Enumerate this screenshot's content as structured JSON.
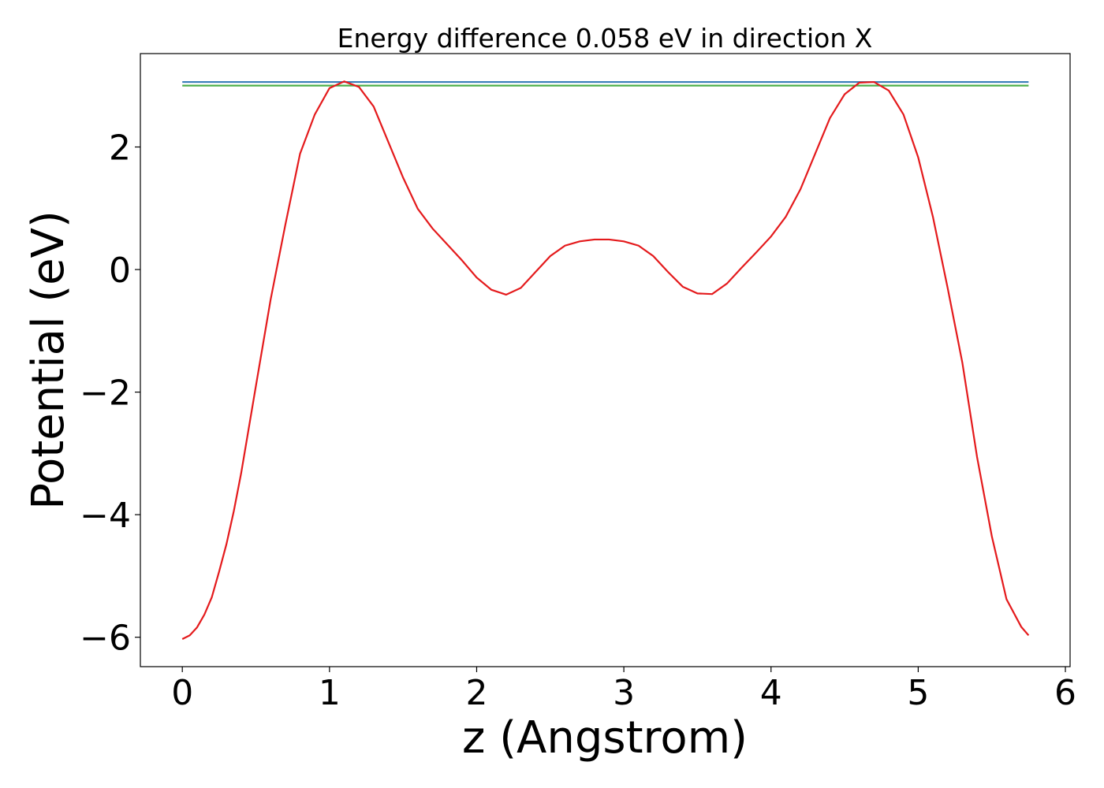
{
  "chart_data": {
    "type": "line",
    "title": "Energy difference 0.058 eV in direction X",
    "xlabel": "z (Angstrom)",
    "ylabel": "Potential (eV)",
    "xlim": [
      -0.285,
      6.032
    ],
    "ylim": [
      -6.48,
      3.524
    ],
    "xticks": [
      0,
      1,
      2,
      3,
      4,
      5,
      6
    ],
    "yticks": [
      {
        "value": -6,
        "label": "−6"
      },
      {
        "value": -4,
        "label": "−4"
      },
      {
        "value": -2,
        "label": "−2"
      },
      0,
      2
    ],
    "grid": false,
    "series": [
      {
        "color": "#e41a1c",
        "x": [
          0,
          0.05,
          0.1,
          0.15,
          0.2,
          0.25,
          0.3,
          0.35,
          0.4,
          0.5,
          0.6,
          0.7,
          0.8,
          0.9,
          1.0,
          1.1,
          1.2,
          1.3,
          1.4,
          1.5,
          1.6,
          1.7,
          1.8,
          1.9,
          2.0,
          2.1,
          2.2,
          2.3,
          2.4,
          2.5,
          2.6,
          2.7,
          2.8,
          2.9,
          3.0,
          3.1,
          3.2,
          3.3,
          3.4,
          3.5,
          3.6,
          3.7,
          3.8,
          3.9,
          4.0,
          4.1,
          4.2,
          4.3,
          4.4,
          4.5,
          4.6,
          4.7,
          4.8,
          4.9,
          5.0,
          5.1,
          5.2,
          5.3,
          5.4,
          5.5,
          5.6,
          5.7,
          5.75
        ],
        "values": [
          -6.03,
          -5.97,
          -5.84,
          -5.63,
          -5.35,
          -4.93,
          -4.48,
          -3.94,
          -3.32,
          -1.9,
          -0.49,
          0.73,
          1.89,
          2.53,
          2.96,
          3.07,
          2.98,
          2.66,
          2.08,
          1.5,
          0.99,
          0.67,
          0.41,
          0.15,
          -0.13,
          -0.33,
          -0.41,
          -0.3,
          -0.04,
          0.22,
          0.39,
          0.46,
          0.49,
          0.49,
          0.46,
          0.39,
          0.22,
          -0.04,
          -0.28,
          -0.39,
          -0.4,
          -0.23,
          0.03,
          0.28,
          0.54,
          0.86,
          1.31,
          1.89,
          2.47,
          2.86,
          3.05,
          3.06,
          2.92,
          2.53,
          1.83,
          0.86,
          -0.3,
          -1.52,
          -3.06,
          -4.35,
          -5.38,
          -5.83,
          -5.97
        ]
      },
      {
        "color": "#377eb8",
        "x": [
          0,
          5.75
        ],
        "values": [
          3.06,
          3.06
        ]
      },
      {
        "color": "#4daf4a",
        "x": [
          0,
          5.75
        ],
        "values": [
          3.002,
          3.002
        ]
      }
    ]
  }
}
